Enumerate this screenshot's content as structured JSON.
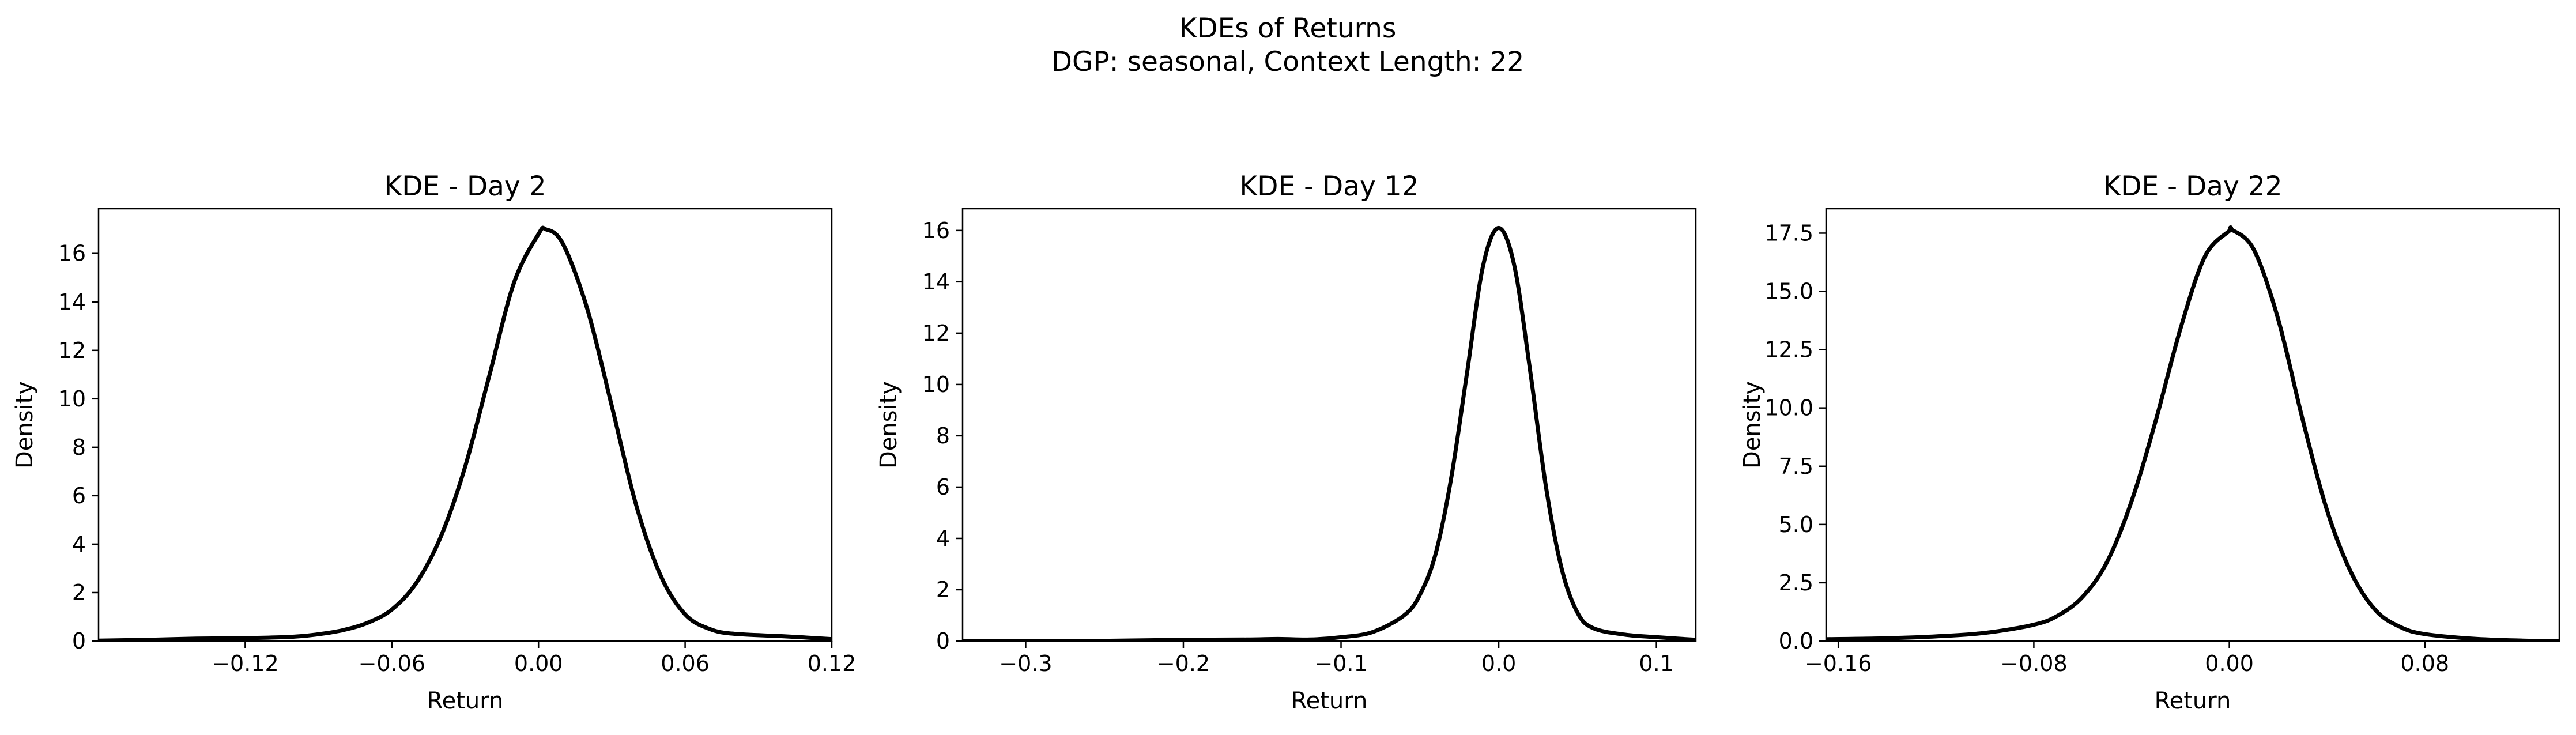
{
  "suptitle_lines": [
    "KDEs of Returns",
    "DGP: seasonal, Context Length: 22"
  ],
  "chart_data": [
    {
      "type": "line",
      "title": "KDE - Day 2",
      "xlabel": "Return",
      "ylabel": "Density",
      "xlim": [
        -0.18,
        0.12
      ],
      "ylim": [
        0,
        17.85
      ],
      "xticks": [
        -0.12,
        -0.06,
        0.0,
        0.06,
        0.12
      ],
      "xtick_labels": [
        "−0.12",
        "−0.06",
        "0.00",
        "0.06",
        "0.12"
      ],
      "yticks": [
        0,
        2,
        4,
        6,
        8,
        10,
        12,
        14,
        16
      ],
      "ytick_labels": [
        "0",
        "2",
        "4",
        "6",
        "8",
        "10",
        "12",
        "14",
        "16"
      ],
      "grid": false,
      "color": "#000000",
      "series": [
        {
          "x": [
            -0.18,
            -0.16,
            -0.14,
            -0.12,
            -0.1,
            -0.09,
            -0.08,
            -0.07,
            -0.06,
            -0.05,
            -0.04,
            -0.03,
            -0.02,
            -0.01,
            0.0,
            0.003,
            0.01,
            0.02,
            0.03,
            0.04,
            0.05,
            0.06,
            0.07,
            0.08,
            0.1,
            0.12
          ],
          "y": [
            0.02,
            0.05,
            0.1,
            0.12,
            0.18,
            0.28,
            0.45,
            0.75,
            1.3,
            2.4,
            4.3,
            7.2,
            11.0,
            14.8,
            16.8,
            17.0,
            16.4,
            13.7,
            9.7,
            5.6,
            2.7,
            1.1,
            0.5,
            0.3,
            0.2,
            0.08
          ]
        }
      ]
    },
    {
      "type": "line",
      "title": "KDE - Day 12",
      "xlabel": "Return",
      "ylabel": "Density",
      "xlim": [
        -0.34,
        0.125
      ],
      "ylim": [
        0,
        16.85
      ],
      "xticks": [
        -0.3,
        -0.2,
        -0.1,
        0.0,
        0.1
      ],
      "xtick_labels": [
        "−0.3",
        "−0.2",
        "−0.1",
        "0.0",
        "0.1"
      ],
      "yticks": [
        0,
        2,
        4,
        6,
        8,
        10,
        12,
        14,
        16
      ],
      "ytick_labels": [
        "0",
        "2",
        "4",
        "6",
        "8",
        "10",
        "12",
        "14",
        "16"
      ],
      "grid": false,
      "color": "#000000",
      "series": [
        {
          "x": [
            -0.34,
            -0.3,
            -0.25,
            -0.2,
            -0.16,
            -0.14,
            -0.12,
            -0.1,
            -0.08,
            -0.06,
            -0.05,
            -0.04,
            -0.03,
            -0.02,
            -0.01,
            0.0,
            0.01,
            0.02,
            0.03,
            0.04,
            0.05,
            0.06,
            0.08,
            0.1,
            0.125
          ],
          "y": [
            0.0,
            0.0,
            0.01,
            0.05,
            0.06,
            0.08,
            0.06,
            0.15,
            0.35,
            1.0,
            1.8,
            3.4,
            6.4,
            10.5,
            14.6,
            16.1,
            14.6,
            10.5,
            6.0,
            2.8,
            1.1,
            0.5,
            0.25,
            0.15,
            0.05
          ]
        }
      ]
    },
    {
      "type": "line",
      "title": "KDE - Day 22",
      "xlabel": "Return",
      "ylabel": "Density",
      "xlim": [
        -0.165,
        0.135
      ],
      "ylim": [
        0,
        18.55
      ],
      "xticks": [
        -0.16,
        -0.08,
        0.0,
        0.08
      ],
      "xtick_labels": [
        "−0.16",
        "−0.08",
        "0.00",
        "0.08"
      ],
      "yticks": [
        0,
        2.5,
        5,
        7.5,
        10,
        12.5,
        15,
        17.5
      ],
      "ytick_labels": [
        "0.0",
        "2.5",
        "5.0",
        "7.5",
        "10.0",
        "12.5",
        "15.0",
        "17.5"
      ],
      "grid": false,
      "color": "#000000",
      "series": [
        {
          "x": [
            -0.165,
            -0.14,
            -0.12,
            -0.1,
            -0.08,
            -0.07,
            -0.06,
            -0.05,
            -0.04,
            -0.03,
            -0.02,
            -0.01,
            0.0,
            0.001,
            0.01,
            0.02,
            0.03,
            0.04,
            0.05,
            0.06,
            0.07,
            0.08,
            0.1,
            0.12,
            0.135
          ],
          "y": [
            0.08,
            0.12,
            0.2,
            0.35,
            0.7,
            1.1,
            1.9,
            3.4,
            6.0,
            9.5,
            13.4,
            16.5,
            17.6,
            17.65,
            16.8,
            13.8,
            9.5,
            5.6,
            2.9,
            1.3,
            0.6,
            0.3,
            0.1,
            0.02,
            0.0
          ]
        }
      ]
    }
  ]
}
